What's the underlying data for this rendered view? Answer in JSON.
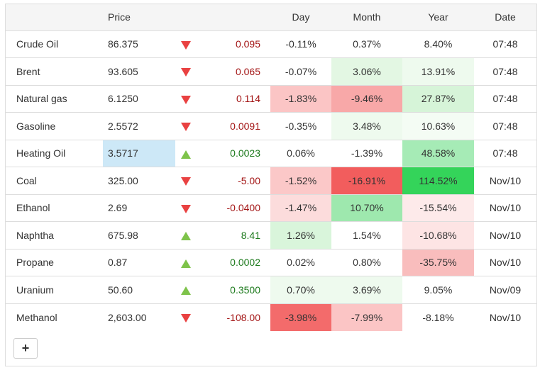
{
  "headers": {
    "name": "",
    "price": "Price",
    "arrow": "",
    "change": "",
    "day": "Day",
    "month": "Month",
    "year": "Year",
    "date": "Date"
  },
  "rows": [
    {
      "name": "Crude Oil",
      "price": "86.375",
      "dir": "down",
      "change": "0.095",
      "day": "-0.11%",
      "month": "0.37%",
      "year": "8.40%",
      "date": "07:48"
    },
    {
      "name": "Brent",
      "price": "93.605",
      "dir": "down",
      "change": "0.065",
      "day": "-0.07%",
      "month": "3.06%",
      "year": "13.91%",
      "date": "07:48"
    },
    {
      "name": "Natural gas",
      "price": "6.1250",
      "dir": "down",
      "change": "0.114",
      "day": "-1.83%",
      "month": "-9.46%",
      "year": "27.87%",
      "date": "07:48"
    },
    {
      "name": "Gasoline",
      "price": "2.5572",
      "dir": "down",
      "change": "0.0091",
      "day": "-0.35%",
      "month": "3.48%",
      "year": "10.63%",
      "date": "07:48"
    },
    {
      "name": "Heating Oil",
      "price": "3.5717",
      "dir": "up",
      "change": "0.0023",
      "day": "0.06%",
      "month": "-1.39%",
      "year": "48.58%",
      "date": "07:48"
    },
    {
      "name": "Coal",
      "price": "325.00",
      "dir": "down",
      "change": "-5.00",
      "day": "-1.52%",
      "month": "-16.91%",
      "year": "114.52%",
      "date": "Nov/10"
    },
    {
      "name": "Ethanol",
      "price": "2.69",
      "dir": "down",
      "change": "-0.0400",
      "day": "-1.47%",
      "month": "10.70%",
      "year": "-15.54%",
      "date": "Nov/10"
    },
    {
      "name": "Naphtha",
      "price": "675.98",
      "dir": "up",
      "change": "8.41",
      "day": "1.26%",
      "month": "1.54%",
      "year": "-10.68%",
      "date": "Nov/10"
    },
    {
      "name": "Propane",
      "price": "0.87",
      "dir": "up",
      "change": "0.0002",
      "day": "0.02%",
      "month": "0.80%",
      "year": "-35.75%",
      "date": "Nov/10"
    },
    {
      "name": "Uranium",
      "price": "50.60",
      "dir": "up",
      "change": "0.3500",
      "day": "0.70%",
      "month": "3.69%",
      "year": "9.05%",
      "date": "Nov/09"
    },
    {
      "name": "Methanol",
      "price": "2,603.00",
      "dir": "down",
      "change": "-108.00",
      "day": "-3.98%",
      "month": "-7.99%",
      "year": "-8.18%",
      "date": "Nov/10"
    }
  ],
  "colors": {
    "highlight_price": "#cde8f7",
    "cells": {
      "1.month": "#e3f7e3",
      "1.year": "#eefaee",
      "2.day": "#fbc5c5",
      "2.month": "#f8a8a8",
      "2.year": "#d6f4d8",
      "3.month": "#eefaee",
      "3.year": "#f4fcf4",
      "4.year": "#a6ebb6",
      "5.day": "#fbc8c8",
      "5.month": "#f25d5d",
      "5.year": "#34d45a",
      "6.day": "#fcdcdc",
      "6.month": "#9ee8ae",
      "6.year": "#fdeaea",
      "7.day": "#d9f5db",
      "7.year": "#fde4e4",
      "8.year": "#f9bdbd",
      "9.day": "#eefaee",
      "9.month": "#eefaee",
      "10.day": "#f36b6b",
      "10.month": "#fbc5c5"
    }
  },
  "add_button": {
    "label": "+"
  }
}
